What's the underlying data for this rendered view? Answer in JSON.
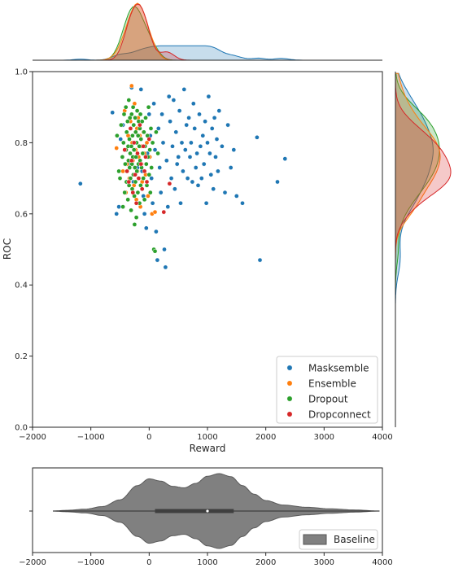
{
  "chart_data": [
    {
      "type": "scatter",
      "xlabel": "Reward",
      "ylabel": "ROC",
      "xlim": [
        -2000,
        4000
      ],
      "ylim": [
        0.0,
        1.0
      ],
      "xticks": [
        "−2000",
        "−1000",
        "0",
        "1000",
        "2000",
        "3000",
        "4000"
      ],
      "yticks": [
        "0.0",
        "0.2",
        "0.4",
        "0.6",
        "0.8",
        "1.0"
      ],
      "legend_position": "lower-right",
      "marginals": "kde on top (reward) and right (ROC)",
      "series": [
        {
          "name": "Masksemble",
          "color": "#1f77b4",
          "points": [
            [
              -1180,
              0.685
            ],
            [
              -630,
              0.885
            ],
            [
              -560,
              0.6
            ],
            [
              -520,
              0.62
            ],
            [
              -490,
              0.81
            ],
            [
              -450,
              0.85
            ],
            [
              -400,
              0.78
            ],
            [
              -350,
              0.74
            ],
            [
              -300,
              0.955
            ],
            [
              -270,
              0.69
            ],
            [
              -240,
              0.8
            ],
            [
              -200,
              0.73
            ],
            [
              -160,
              0.84
            ],
            [
              -140,
              0.95
            ],
            [
              -120,
              0.72
            ],
            [
              -100,
              0.65
            ],
            [
              -80,
              0.6
            ],
            [
              -50,
              0.56
            ],
            [
              -30,
              0.77
            ],
            [
              0,
              0.88
            ],
            [
              20,
              0.82
            ],
            [
              40,
              0.7
            ],
            [
              60,
              0.63
            ],
            [
              80,
              0.91
            ],
            [
              100,
              0.78
            ],
            [
              120,
              0.55
            ],
            [
              140,
              0.47
            ],
            [
              160,
              0.84
            ],
            [
              180,
              0.73
            ],
            [
              200,
              0.66
            ],
            [
              220,
              0.88
            ],
            [
              240,
              0.8
            ],
            [
              260,
              0.5
            ],
            [
              280,
              0.45
            ],
            [
              300,
              0.75
            ],
            [
              320,
              0.62
            ],
            [
              340,
              0.93
            ],
            [
              360,
              0.86
            ],
            [
              380,
              0.7
            ],
            [
              400,
              0.79
            ],
            [
              420,
              0.92
            ],
            [
              440,
              0.67
            ],
            [
              460,
              0.83
            ],
            [
              480,
              0.74
            ],
            [
              500,
              0.76
            ],
            [
              520,
              0.89
            ],
            [
              540,
              0.63
            ],
            [
              560,
              0.8
            ],
            [
              580,
              0.72
            ],
            [
              600,
              0.95
            ],
            [
              620,
              0.78
            ],
            [
              640,
              0.85
            ],
            [
              660,
              0.7
            ],
            [
              680,
              0.87
            ],
            [
              700,
              0.76
            ],
            [
              720,
              0.8
            ],
            [
              740,
              0.69
            ],
            [
              760,
              0.91
            ],
            [
              780,
              0.84
            ],
            [
              800,
              0.73
            ],
            [
              820,
              0.77
            ],
            [
              840,
              0.68
            ],
            [
              860,
              0.88
            ],
            [
              880,
              0.79
            ],
            [
              900,
              0.7
            ],
            [
              920,
              0.82
            ],
            [
              940,
              0.74
            ],
            [
              960,
              0.86
            ],
            [
              980,
              0.63
            ],
            [
              1000,
              0.8
            ],
            [
              1020,
              0.93
            ],
            [
              1040,
              0.77
            ],
            [
              1060,
              0.71
            ],
            [
              1080,
              0.84
            ],
            [
              1100,
              0.67
            ],
            [
              1120,
              0.87
            ],
            [
              1140,
              0.76
            ],
            [
              1160,
              0.81
            ],
            [
              1180,
              0.72
            ],
            [
              1200,
              0.89
            ],
            [
              1250,
              0.79
            ],
            [
              1300,
              0.66
            ],
            [
              1350,
              0.85
            ],
            [
              1400,
              0.73
            ],
            [
              1450,
              0.78
            ],
            [
              1500,
              0.65
            ],
            [
              1600,
              0.63
            ],
            [
              1850,
              0.815
            ],
            [
              1900,
              0.47
            ],
            [
              2200,
              0.69
            ],
            [
              2330,
              0.755
            ]
          ]
        },
        {
          "name": "Ensemble",
          "color": "#ff7f0e",
          "points": [
            [
              -560,
              0.785
            ],
            [
              -450,
              0.72
            ],
            [
              -420,
              0.89
            ],
            [
              -400,
              0.66
            ],
            [
              -380,
              0.74
            ],
            [
              -360,
              0.82
            ],
            [
              -340,
              0.7
            ],
            [
              -320,
              0.86
            ],
            [
              -300,
              0.96
            ],
            [
              -290,
              0.8
            ],
            [
              -280,
              0.75
            ],
            [
              -260,
              0.68
            ],
            [
              -250,
              0.91
            ],
            [
              -230,
              0.78
            ],
            [
              -220,
              0.64
            ],
            [
              -210,
              0.84
            ],
            [
              -200,
              0.72
            ],
            [
              -190,
              0.87
            ],
            [
              -180,
              0.76
            ],
            [
              -170,
              0.7
            ],
            [
              -160,
              0.82
            ],
            [
              -150,
              0.62
            ],
            [
              -140,
              0.79
            ],
            [
              -130,
              0.74
            ],
            [
              -120,
              0.69
            ],
            [
              -100,
              0.83
            ],
            [
              -80,
              0.77
            ],
            [
              -60,
              0.71
            ],
            [
              -40,
              0.8
            ],
            [
              -20,
              0.65
            ],
            [
              10,
              0.76
            ],
            [
              50,
              0.6
            ],
            [
              100,
              0.605
            ]
          ]
        },
        {
          "name": "Dropout",
          "color": "#2ca02c",
          "points": [
            [
              -550,
              0.82
            ],
            [
              -520,
              0.72
            ],
            [
              -500,
              0.7
            ],
            [
              -480,
              0.85
            ],
            [
              -460,
              0.76
            ],
            [
              -450,
              0.62
            ],
            [
              -440,
              0.8
            ],
            [
              -430,
              0.88
            ],
            [
              -420,
              0.66
            ],
            [
              -410,
              0.74
            ],
            [
              -400,
              0.9
            ],
            [
              -395,
              0.78
            ],
            [
              -390,
              0.69
            ],
            [
              -385,
              0.83
            ],
            [
              -380,
              0.72
            ],
            [
              -370,
              0.86
            ],
            [
              -365,
              0.64
            ],
            [
              -360,
              0.79
            ],
            [
              -355,
              0.75
            ],
            [
              -350,
              0.92
            ],
            [
              -345,
              0.68
            ],
            [
              -340,
              0.81
            ],
            [
              -335,
              0.73
            ],
            [
              -330,
              0.87
            ],
            [
              -325,
              0.77
            ],
            [
              -320,
              0.7
            ],
            [
              -315,
              0.84
            ],
            [
              -310,
              0.61
            ],
            [
              -305,
              0.79
            ],
            [
              -300,
              0.88
            ],
            [
              -295,
              0.74
            ],
            [
              -290,
              0.67
            ],
            [
              -285,
              0.82
            ],
            [
              -280,
              0.76
            ],
            [
              -275,
              0.9
            ],
            [
              -270,
              0.71
            ],
            [
              -265,
              0.85
            ],
            [
              -260,
              0.78
            ],
            [
              -255,
              0.65
            ],
            [
              -250,
              0.8
            ],
            [
              -245,
              0.73
            ],
            [
              -240,
              0.87
            ],
            [
              -235,
              0.69
            ],
            [
              -230,
              0.83
            ],
            [
              -225,
              0.76
            ],
            [
              -220,
              0.59
            ],
            [
              -215,
              0.8
            ],
            [
              -210,
              0.72
            ],
            [
              -205,
              0.89
            ],
            [
              -200,
              0.77
            ],
            [
              -195,
              0.66
            ],
            [
              -190,
              0.82
            ],
            [
              -185,
              0.74
            ],
            [
              -180,
              0.86
            ],
            [
              -175,
              0.7
            ],
            [
              -170,
              0.79
            ],
            [
              -165,
              0.63
            ],
            [
              -160,
              0.84
            ],
            [
              -155,
              0.75
            ],
            [
              -150,
              0.88
            ],
            [
              -145,
              0.68
            ],
            [
              -140,
              0.81
            ],
            [
              -130,
              0.73
            ],
            [
              -120,
              0.86
            ],
            [
              -110,
              0.77
            ],
            [
              -100,
              0.7
            ],
            [
              -90,
              0.83
            ],
            [
              -80,
              0.64
            ],
            [
              -70,
              0.79
            ],
            [
              -60,
              0.87
            ],
            [
              -50,
              0.74
            ],
            [
              -40,
              0.68
            ],
            [
              -30,
              0.82
            ],
            [
              -20,
              0.76
            ],
            [
              -10,
              0.9
            ],
            [
              0,
              0.71
            ],
            [
              10,
              0.78
            ],
            [
              20,
              0.66
            ],
            [
              30,
              0.84
            ],
            [
              40,
              0.73
            ],
            [
              60,
              0.8
            ],
            [
              80,
              0.5
            ],
            [
              100,
              0.495
            ],
            [
              120,
              0.83
            ],
            [
              150,
              0.77
            ],
            [
              -250,
              0.57
            ]
          ]
        },
        {
          "name": "Dropconnect",
          "color": "#d62728",
          "points": [
            [
              -420,
              0.78
            ],
            [
              -380,
              0.72
            ],
            [
              -350,
              0.69
            ],
            [
              -320,
              0.84
            ],
            [
              -300,
              0.75
            ],
            [
              -280,
              0.66
            ],
            [
              -260,
              0.8
            ],
            [
              -240,
              0.71
            ],
            [
              -220,
              0.63
            ],
            [
              -200,
              0.77
            ],
            [
              -180,
              0.7
            ],
            [
              -160,
              0.85
            ],
            [
              -140,
              0.74
            ],
            [
              -120,
              0.67
            ],
            [
              -100,
              0.79
            ],
            [
              -80,
              0.72
            ],
            [
              -60,
              0.76
            ],
            [
              -40,
              0.69
            ],
            [
              0,
              0.81
            ],
            [
              250,
              0.605
            ],
            [
              350,
              0.685
            ]
          ]
        }
      ]
    },
    {
      "type": "violin",
      "xlim": [
        -2000,
        4000
      ],
      "xticks": [
        "−2000",
        "−1000",
        "0",
        "1000",
        "2000",
        "3000",
        "4000"
      ],
      "legend_position": "lower-right",
      "series": [
        {
          "name": "Baseline",
          "color": "#808080",
          "extent": [
            -1650,
            3950
          ],
          "quartiles": [
            100,
            1000,
            1450
          ],
          "density": [
            [
              -1650,
              0.0
            ],
            [
              -1400,
              0.02
            ],
            [
              -1100,
              0.05
            ],
            [
              -800,
              0.12
            ],
            [
              -500,
              0.3
            ],
            [
              -200,
              0.68
            ],
            [
              0,
              0.86
            ],
            [
              200,
              0.8
            ],
            [
              400,
              0.66
            ],
            [
              600,
              0.62
            ],
            [
              800,
              0.74
            ],
            [
              1000,
              0.93
            ],
            [
              1200,
              1.0
            ],
            [
              1400,
              0.92
            ],
            [
              1600,
              0.68
            ],
            [
              1800,
              0.45
            ],
            [
              2000,
              0.28
            ],
            [
              2300,
              0.16
            ],
            [
              2700,
              0.1
            ],
            [
              3100,
              0.06
            ],
            [
              3500,
              0.03
            ],
            [
              3950,
              0.0
            ]
          ]
        }
      ]
    }
  ]
}
